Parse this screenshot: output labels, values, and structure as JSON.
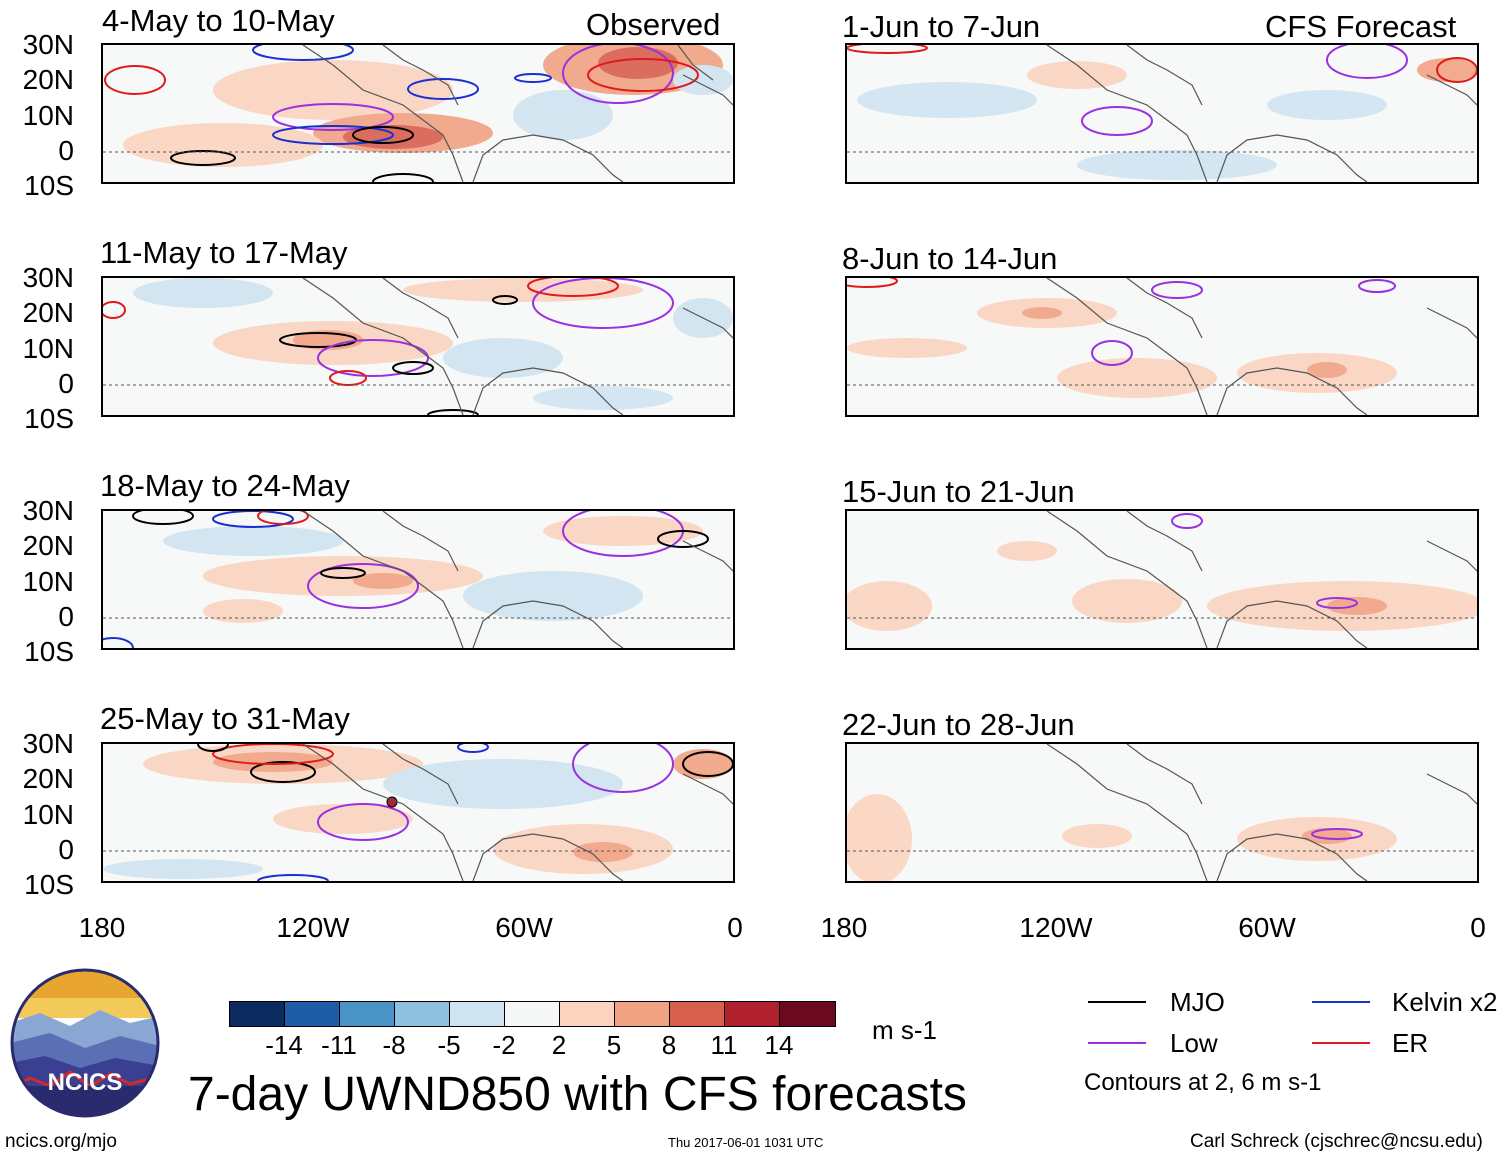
{
  "panels": {
    "left": [
      {
        "title": "4-May to 10-May",
        "tag": "Observed"
      },
      {
        "title": "11-May to 17-May"
      },
      {
        "title": "18-May to 24-May"
      },
      {
        "title": "25-May to 31-May"
      }
    ],
    "right": [
      {
        "title": "1-Jun to 7-Jun",
        "tag": "CFS Forecast"
      },
      {
        "title": "8-Jun to 14-Jun"
      },
      {
        "title": "15-Jun to 21-Jun"
      },
      {
        "title": "22-Jun to 28-Jun"
      }
    ]
  },
  "axes": {
    "y_labels": [
      "30N",
      "20N",
      "10N",
      "0",
      "10S"
    ],
    "x_labels": [
      "180",
      "120W",
      "60W",
      "0"
    ]
  },
  "colorbar": {
    "colors": [
      "#0b2a5e",
      "#1f5ca8",
      "#4a93c6",
      "#8fc1de",
      "#cfe3f0",
      "#f6f8f8",
      "#fbd3bf",
      "#f1a283",
      "#d75f4d",
      "#b0202e",
      "#6b0a1e"
    ],
    "labels": [
      "-14",
      "-11",
      "-8",
      "-5",
      "-2",
      "2",
      "5",
      "8",
      "11",
      "14"
    ],
    "units": "m s-1"
  },
  "legend": {
    "items": [
      {
        "label": "MJO",
        "color": "#000000"
      },
      {
        "label": "Kelvin x2",
        "color": "#1a2fd0"
      },
      {
        "label": "Low",
        "color": "#9b30e0"
      },
      {
        "label": "ER",
        "color": "#e01a1a"
      }
    ],
    "note": "Contours at 2, 6 m s-1"
  },
  "main_title": "7-day UWND850 with CFS forecasts",
  "footer": {
    "left": "ncics.org/mjo",
    "center": "Thu 2017-06-01 1031 UTC",
    "right": "Carl Schreck (cjschrec@ncsu.edu)"
  },
  "logo": {
    "text": "NCICS"
  }
}
